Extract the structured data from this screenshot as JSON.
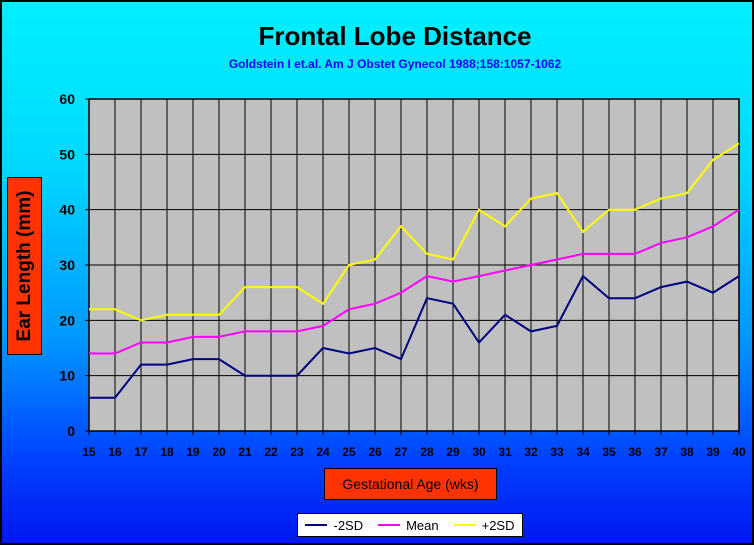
{
  "chart_data": {
    "type": "line",
    "title": "Frontal Lobe Distance",
    "subtitle": "Goldstein I et.al. Am J Obstet Gynecol 1988;158:1057-1062",
    "xlabel": "Gestational Age (wks)",
    "ylabel": "Ear Length (mm)",
    "x": [
      "15",
      "16",
      "17",
      "18",
      "19",
      "20",
      "21",
      "22",
      "23",
      "24",
      "25",
      "26",
      "27",
      "28",
      "29",
      "30",
      "31",
      "32",
      "33",
      "34",
      "35",
      "36",
      "37",
      "38",
      "39",
      "40"
    ],
    "ylim": [
      0,
      60
    ],
    "yticks": [
      "0",
      "10",
      "20",
      "30",
      "40",
      "50",
      "60"
    ],
    "grid": true,
    "legend_position": "bottom",
    "series": [
      {
        "name": "-2SD",
        "color": "#000080",
        "values": [
          6,
          6,
          12,
          12,
          13,
          13,
          10,
          10,
          10,
          15,
          14,
          15,
          13,
          24,
          23,
          16,
          21,
          18,
          19,
          28,
          24,
          24,
          26,
          27,
          25,
          28
        ]
      },
      {
        "name": "Mean",
        "color": "#ff00ff",
        "values": [
          14,
          14,
          16,
          16,
          17,
          17,
          18,
          18,
          18,
          19,
          22,
          23,
          25,
          28,
          27,
          28,
          29,
          30,
          31,
          32,
          32,
          32,
          34,
          35,
          37,
          40
        ]
      },
      {
        "name": "+2SD",
        "color": "#ffff00",
        "values": [
          22,
          22,
          20,
          21,
          21,
          21,
          26,
          26,
          26,
          23,
          30,
          31,
          37,
          32,
          31,
          40,
          37,
          42,
          43,
          36,
          40,
          40,
          42,
          43,
          49,
          52
        ]
      }
    ],
    "colors": {
      "plot_background": "#c0c0c0",
      "label_box": "#ff3300",
      "subtitle": "#1a00ff"
    }
  }
}
